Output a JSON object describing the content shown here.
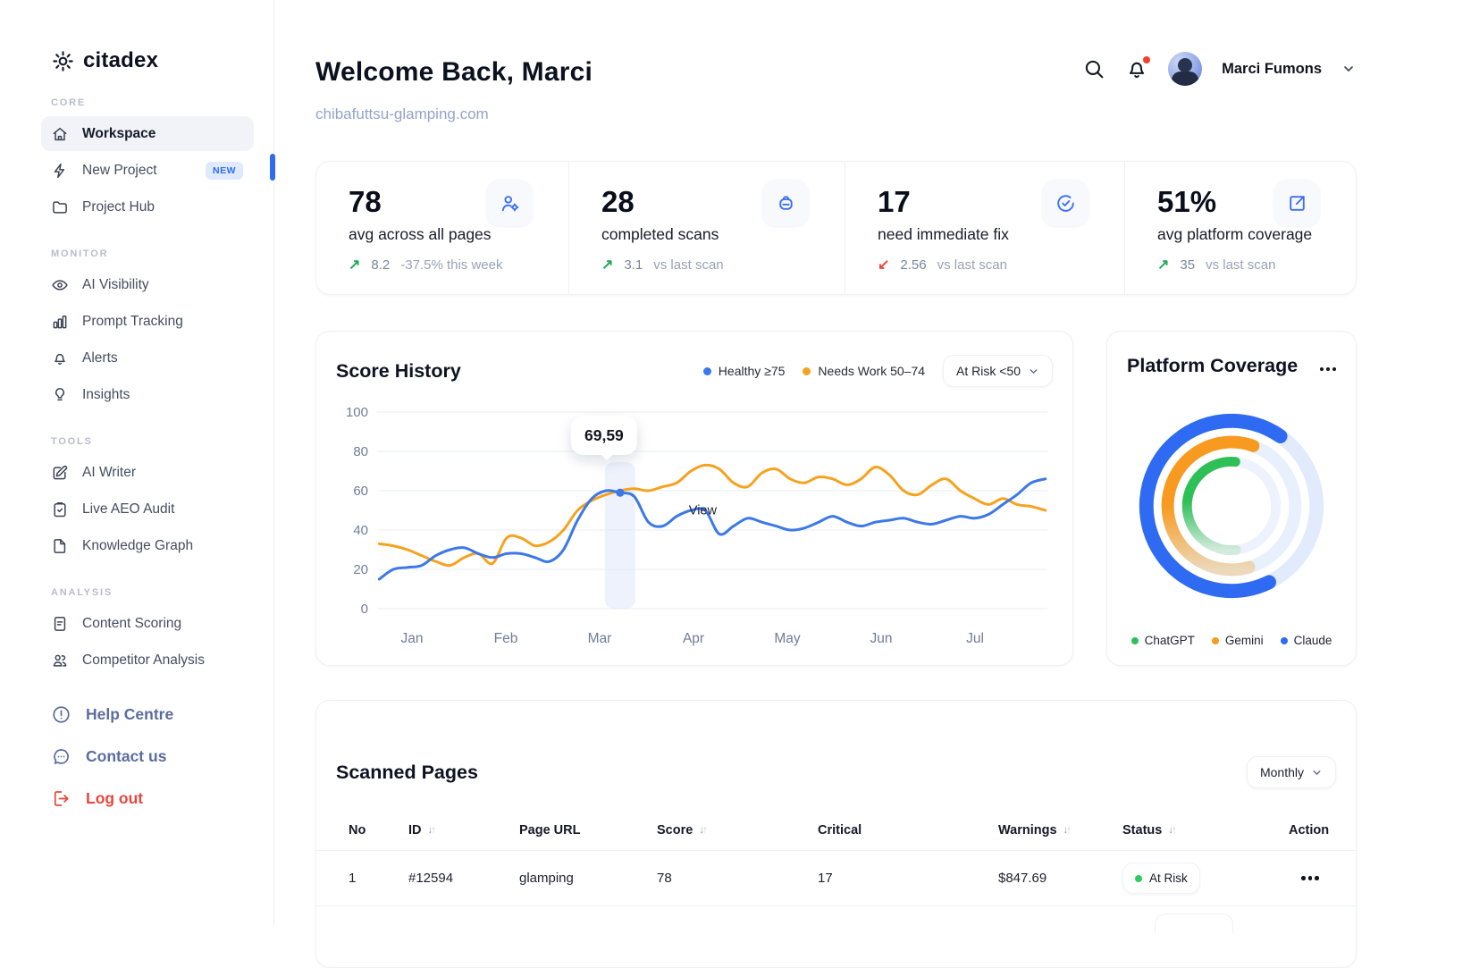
{
  "brand": {
    "name": "citadex"
  },
  "sidebar": {
    "sections": [
      {
        "label": "CORE",
        "items": [
          {
            "label": "Workspace",
            "icon": "home-icon",
            "active": true
          },
          {
            "label": "New Project",
            "icon": "bolt-icon",
            "badge": "NEW"
          },
          {
            "label": "Project Hub",
            "icon": "folder-icon"
          }
        ]
      },
      {
        "label": "MONITOR",
        "items": [
          {
            "label": "AI Visibility",
            "icon": "eye-icon"
          },
          {
            "label": "Prompt Tracking",
            "icon": "bar-chart-icon"
          },
          {
            "label": "Alerts",
            "icon": "bell-icon"
          },
          {
            "label": "Insights",
            "icon": "lightbulb-icon"
          }
        ]
      },
      {
        "label": "TOOLS",
        "items": [
          {
            "label": "AI Writer",
            "icon": "edit-icon"
          },
          {
            "label": "Live AEO Audit",
            "icon": "clipboard-check-icon"
          },
          {
            "label": "Knowledge Graph",
            "icon": "knowledge-graph-icon"
          }
        ]
      },
      {
        "label": "ANALYSIS",
        "items": [
          {
            "label": "Content Scoring",
            "icon": "document-icon"
          },
          {
            "label": "Competitor Analysis",
            "icon": "people-icon"
          }
        ]
      }
    ],
    "footer_links": [
      {
        "label": "Help Centre",
        "icon": "help-circle-icon",
        "color": "#5b6d9e"
      },
      {
        "label": "Contact us",
        "icon": "chat-bubble-icon",
        "color": "#5b6d9e"
      },
      {
        "label": "Log out",
        "icon": "logout-icon",
        "color": "#e8463d"
      }
    ]
  },
  "header": {
    "title": "Welcome Back, Marci",
    "subtitle": "chibafuttsu-glamping.com",
    "user_name": "Marci Fumons"
  },
  "stats": [
    {
      "value": "78",
      "label": "avg across all pages",
      "delta": "8.2",
      "delta_note": "-37.5% this week",
      "trend": "up",
      "icon": "user-gear-icon"
    },
    {
      "value": "28",
      "label": "completed scans",
      "delta": "3.1",
      "delta_note": "vs last scan",
      "trend": "up",
      "icon": "bot-icon"
    },
    {
      "value": "17",
      "label": "need immediate fix",
      "delta": "2.56",
      "delta_note": "vs last scan",
      "trend": "down",
      "icon": "check-circle-icon"
    },
    {
      "value": "51%",
      "label": "avg platform coverage",
      "delta": "35",
      "delta_note": "vs last scan",
      "trend": "up",
      "icon": "share-arrow-icon"
    }
  ],
  "score_history": {
    "title": "Score History",
    "filter_label": "At Risk <50"
  },
  "platform_coverage": {
    "title": "Platform Coverage"
  },
  "chart_data": [
    {
      "type": "line",
      "title": "Score History",
      "x_labels": [
        "Jan",
        "Feb",
        "Mar",
        "Apr",
        "May",
        "Jun",
        "Jul"
      ],
      "x_range_months": [
        -0.35,
        6.75
      ],
      "ylim": [
        0,
        100
      ],
      "yticks": [
        0,
        20,
        40,
        60,
        80,
        100
      ],
      "grid": true,
      "legend_position": "top-right",
      "series": [
        {
          "name": "Healthy ≥75",
          "color": "#3b78e8",
          "values": [
            15,
            20,
            21,
            22,
            27,
            30,
            31,
            28,
            26,
            28,
            28,
            26,
            24,
            30,
            45,
            56,
            60,
            59,
            57,
            44,
            42,
            47,
            50,
            50,
            38,
            42,
            46,
            44,
            42,
            40,
            41,
            44,
            47,
            44,
            42,
            44,
            45,
            46,
            44,
            43,
            45,
            47,
            46,
            48,
            53,
            58,
            64,
            66
          ]
        },
        {
          "name": "Needs Work 50–74",
          "color": "#f6a21e",
          "values": [
            33,
            32,
            30,
            27,
            24,
            22,
            26,
            28,
            23,
            36,
            36,
            32,
            34,
            40,
            50,
            55,
            58,
            60,
            61,
            60,
            62,
            64,
            70,
            73,
            71,
            64,
            62,
            69,
            71,
            66,
            64,
            67,
            66,
            63,
            66,
            72,
            68,
            60,
            58,
            63,
            66,
            60,
            56,
            53,
            56,
            53,
            52,
            50
          ]
        }
      ],
      "marker": {
        "series": 0,
        "index": 17,
        "label": "69,59"
      },
      "cursor_label": {
        "text": "View",
        "month": 2.95,
        "value": 48
      }
    },
    {
      "type": "donut",
      "title": "Platform Coverage",
      "rings": [
        {
          "name": "Claude",
          "color": "#2e6bf2",
          "percent": 67
        },
        {
          "name": "Gemini",
          "color": "#f79a1f",
          "percent": 60
        },
        {
          "name": "ChatGPT",
          "color": "#2fbf57",
          "percent": 53
        }
      ],
      "legend": [
        {
          "label": "ChatGPT",
          "color": "#2fbf57"
        },
        {
          "label": "Gemini",
          "color": "#f79a1f"
        },
        {
          "label": "Claude",
          "color": "#2e6bf2"
        }
      ]
    }
  ],
  "scanned_pages": {
    "title": "Scanned Pages",
    "filter_label": "Monthly",
    "columns": [
      {
        "label": "No",
        "sortable": false
      },
      {
        "label": "ID",
        "sortable": true
      },
      {
        "label": "Page URL",
        "sortable": false
      },
      {
        "label": "Score",
        "sortable": true
      },
      {
        "label": "Critical",
        "sortable": false
      },
      {
        "label": "Warnings",
        "sortable": true
      },
      {
        "label": "Status",
        "sortable": true
      },
      {
        "label": "Action",
        "sortable": false
      }
    ],
    "rows": [
      {
        "no": "1",
        "id": "#12594",
        "page_url": "glamping",
        "score": "78",
        "critical": "17",
        "warnings": "$847.69",
        "status": "At Risk",
        "status_color": "#2ecc5e"
      }
    ]
  }
}
